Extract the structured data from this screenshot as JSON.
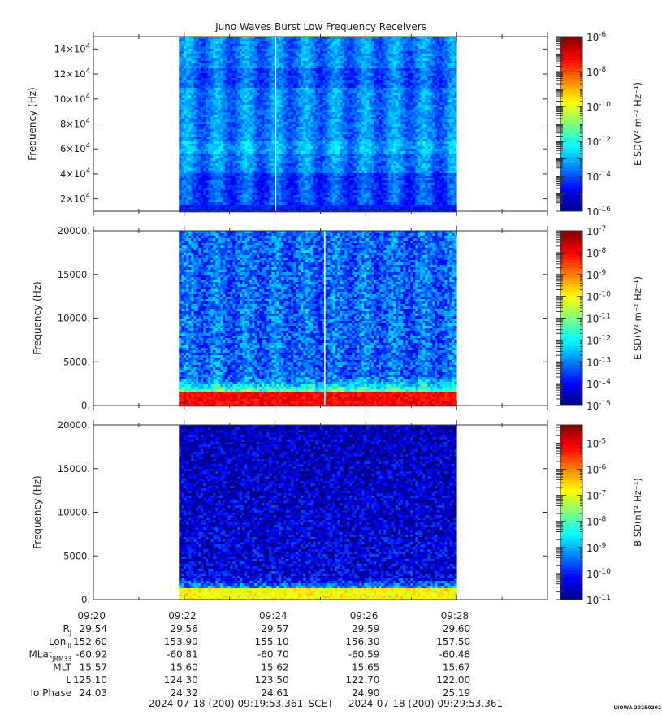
{
  "chart_data": [
    {
      "type": "heatmap",
      "title": "Juno Waves Burst Low Frequency Receivers",
      "ylabel": "Frequency (Hz)",
      "yticks": [
        {
          "value": 20000,
          "label": "2×10",
          "exp": "4"
        },
        {
          "value": 40000,
          "label": "4×10",
          "exp": "4"
        },
        {
          "value": 60000,
          "label": "6×10",
          "exp": "4"
        },
        {
          "value": 80000,
          "label": "8×10",
          "exp": "4"
        },
        {
          "value": 100000,
          "label": "10×10",
          "exp": "4"
        },
        {
          "value": 120000,
          "label": "12×10",
          "exp": "4"
        },
        {
          "value": 140000,
          "label": "14×10",
          "exp": "4"
        }
      ],
      "ylim": [
        10000,
        150000
      ],
      "data_time_range": [
        "09:21:53",
        "09:28:00"
      ],
      "colorbar": {
        "label": "E SD(V² m⁻² Hz⁻¹)",
        "scale": "log",
        "ticks": [
          {
            "value": -6,
            "base": "10",
            "exp": "-6"
          },
          {
            "value": -8,
            "base": "10",
            "exp": "-8"
          },
          {
            "value": -10,
            "base": "10",
            "exp": "-10"
          },
          {
            "value": -12,
            "base": "10",
            "exp": "-12"
          },
          {
            "value": -14,
            "base": "10",
            "exp": "-14"
          },
          {
            "value": -16,
            "base": "10",
            "exp": "-16"
          }
        ],
        "range_log10": [
          -16,
          -6
        ]
      },
      "features": {
        "background_log10": -13.5,
        "band_low_log10": -14.5,
        "gap_time": "09:24:00"
      }
    },
    {
      "type": "heatmap",
      "ylabel": "Frequency (Hz)",
      "yticks": [
        {
          "value": 0,
          "label": "0."
        },
        {
          "value": 5000,
          "label": "5000."
        },
        {
          "value": 10000,
          "label": "10000."
        },
        {
          "value": 15000,
          "label": "15000."
        },
        {
          "value": 20000,
          "label": "20000."
        }
      ],
      "ylim": [
        0,
        20000
      ],
      "data_time_range": [
        "09:21:53",
        "09:28:00"
      ],
      "colorbar": {
        "label": "E SD(V² m⁻² Hz⁻¹)",
        "scale": "log",
        "ticks": [
          {
            "value": -7,
            "base": "10",
            "exp": "-7"
          },
          {
            "value": -8,
            "base": "10",
            "exp": "-8"
          },
          {
            "value": -9,
            "base": "10",
            "exp": "-9"
          },
          {
            "value": -10,
            "base": "10",
            "exp": "-10"
          },
          {
            "value": -11,
            "base": "10",
            "exp": "-11"
          },
          {
            "value": -12,
            "base": "10",
            "exp": "-12"
          },
          {
            "value": -13,
            "base": "10",
            "exp": "-13"
          },
          {
            "value": -14,
            "base": "10",
            "exp": "-14"
          },
          {
            "value": -15,
            "base": "10",
            "exp": "-15"
          }
        ],
        "range_log10": [
          -15,
          -7
        ]
      },
      "features": {
        "background_log10": -13.2,
        "low_freq_emission_hz": [
          0,
          1500
        ],
        "low_freq_peak_log10": -8,
        "gap_time": "09:25:05"
      }
    },
    {
      "type": "heatmap",
      "ylabel": "Frequency (Hz)",
      "yticks": [
        {
          "value": 0,
          "label": "0."
        },
        {
          "value": 5000,
          "label": "5000."
        },
        {
          "value": 10000,
          "label": "10000."
        },
        {
          "value": 15000,
          "label": "15000."
        },
        {
          "value": 20000,
          "label": "20000."
        }
      ],
      "ylim": [
        0,
        20000
      ],
      "data_time_range": [
        "09:21:53",
        "09:28:00"
      ],
      "colorbar": {
        "label": "B SD(nT² Hz⁻¹)",
        "scale": "log",
        "ticks": [
          {
            "value": -5,
            "base": "10",
            "exp": "-5"
          },
          {
            "value": -6,
            "base": "10",
            "exp": "-6"
          },
          {
            "value": -7,
            "base": "10",
            "exp": "-7"
          },
          {
            "value": -8,
            "base": "10",
            "exp": "-8"
          },
          {
            "value": -9,
            "base": "10",
            "exp": "-9"
          },
          {
            "value": -10,
            "base": "10",
            "exp": "-10"
          },
          {
            "value": -11,
            "base": "10",
            "exp": "-11"
          }
        ],
        "range_log10": [
          -11,
          -4.3
        ]
      },
      "features": {
        "background_log10": -10.3,
        "low_freq_emission_hz": [
          0,
          1200
        ],
        "low_freq_peak_log10": -6.8
      }
    }
  ],
  "x_axis": {
    "time_range": [
      "09:20:00",
      "09:30:00"
    ],
    "ticks": [
      "09:20",
      "09:22",
      "09:24",
      "09:26",
      "09:28"
    ]
  },
  "ephemeris": [
    {
      "label": "R",
      "sub": "J",
      "values": [
        "29.54",
        "29.56",
        "29.57",
        "29.59",
        "29.60"
      ]
    },
    {
      "label": "Lon",
      "sub": "III",
      "values": [
        "152.60",
        "153.90",
        "155.10",
        "156.30",
        "157.50"
      ]
    },
    {
      "label": "MLat",
      "sub": "JRM33",
      "values": [
        "-60.92",
        "-60.81",
        "-60.70",
        "-60.59",
        "-60.48"
      ]
    },
    {
      "label": "MLT",
      "sub": "",
      "values": [
        "15.57",
        "15.60",
        "15.62",
        "15.65",
        "15.67"
      ]
    },
    {
      "label": "L",
      "sub": "",
      "values": [
        "125.10",
        "124.30",
        "123.50",
        "122.70",
        "122.00"
      ]
    },
    {
      "label": "Io Phase",
      "sub": "",
      "values": [
        "24.03",
        "24.32",
        "24.61",
        "24.90",
        "25.19"
      ]
    }
  ],
  "footer": {
    "start": "2024-07-18 (200) 09:19:53.361",
    "scet": "SCET",
    "end": "2024-07-18 (200) 09:29:53.361",
    "version": "UIOWA 20250202"
  }
}
